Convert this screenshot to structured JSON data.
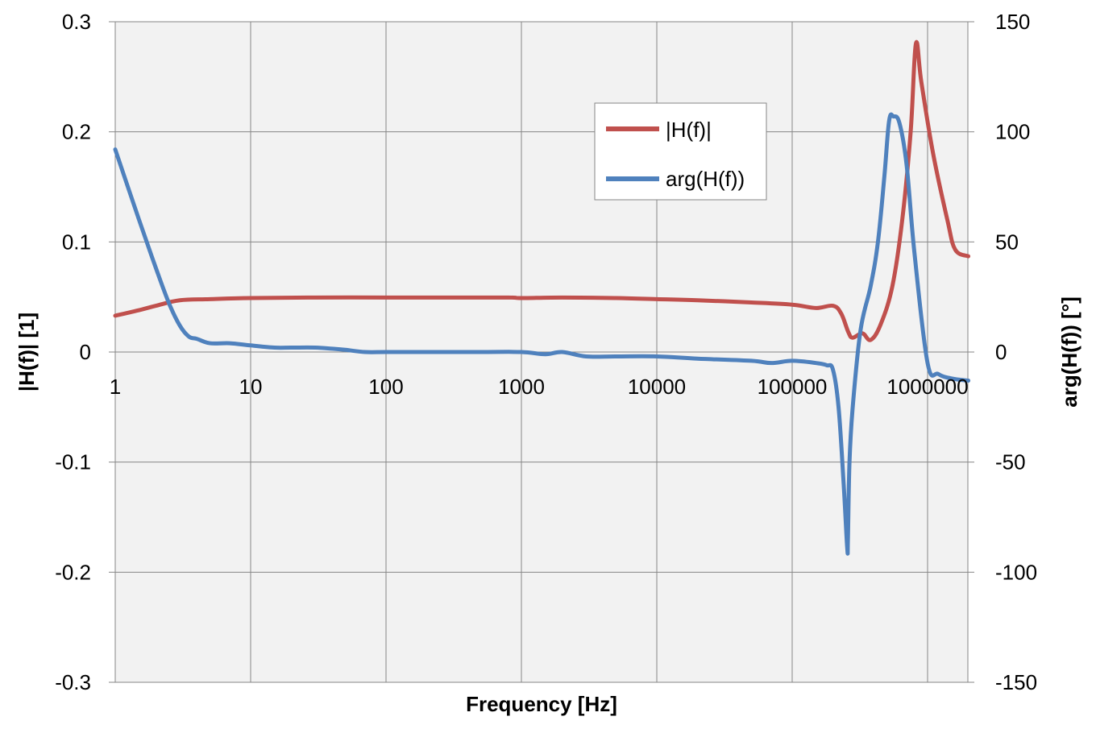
{
  "chart_data": {
    "type": "line",
    "xlabel": "Frequency [Hz]",
    "ylabel_left": "|H(f)| [1]",
    "ylabel_right": "arg(H(f)) [°]",
    "x_scale": "log",
    "x_ticks": [
      "1",
      "10",
      "100",
      "1000",
      "10000",
      "100000",
      "1000000"
    ],
    "x_range": [
      1,
      2000000
    ],
    "y_left_ticks": [
      "0.3",
      "0.2",
      "0.1",
      "0",
      "-0.1",
      "-0.2",
      "-0.3"
    ],
    "y_left_range": [
      -0.3,
      0.3
    ],
    "y_right_ticks": [
      "150",
      "100",
      "50",
      "0",
      "-50",
      "-100",
      "-150"
    ],
    "y_right_range": [
      -150,
      150
    ],
    "grid": true,
    "legend_position": "top-right-inside",
    "colors": {
      "magnitude": "#c0504d",
      "phase": "#4f81bd",
      "plot_bg": "#f2f2f2",
      "grid": "#868686"
    },
    "series": [
      {
        "name": "|H(f)|",
        "axis": "left",
        "x": [
          1,
          1.5,
          2,
          3,
          5,
          10,
          30,
          100,
          300,
          800,
          1000,
          2000,
          5000,
          10000,
          20000,
          50000,
          100000,
          150000,
          200000,
          230000,
          260000,
          280000,
          330000,
          380000,
          450000,
          550000,
          650000,
          750000,
          820000,
          900000,
          1100000,
          1400000,
          1600000,
          2000000
        ],
        "y": [
          0.033,
          0.038,
          0.042,
          0.047,
          0.048,
          0.049,
          0.0495,
          0.0495,
          0.0495,
          0.0495,
          0.049,
          0.0495,
          0.049,
          0.048,
          0.047,
          0.045,
          0.043,
          0.04,
          0.042,
          0.035,
          0.018,
          0.013,
          0.017,
          0.011,
          0.025,
          0.06,
          0.12,
          0.2,
          0.28,
          0.245,
          0.18,
          0.12,
          0.093,
          0.087
        ]
      },
      {
        "name": "arg(H(f))",
        "axis": "right",
        "x": [
          1,
          1.5,
          2,
          2.5,
          3,
          3.5,
          4,
          5,
          7,
          10,
          15,
          20,
          30,
          40,
          50,
          70,
          100,
          200,
          500,
          1000,
          1500,
          2000,
          3000,
          5000,
          10000,
          20000,
          50000,
          70000,
          100000,
          150000,
          180000,
          200000,
          220000,
          240000,
          255000,
          258000,
          265000,
          280000,
          320000,
          380000,
          430000,
          480000,
          520000,
          560000,
          620000,
          700000,
          800000,
          1000000,
          1200000,
          1500000,
          2000000
        ],
        "y": [
          92,
          60,
          38,
          22,
          12,
          7,
          6,
          4,
          4,
          3,
          2,
          2,
          2,
          1.5,
          1,
          0,
          0,
          0,
          0,
          0,
          -1,
          0,
          -2,
          -2,
          -2,
          -3,
          -4,
          -5,
          -4,
          -5,
          -6,
          -8,
          -25,
          -60,
          -89,
          -85,
          -50,
          -25,
          10,
          30,
          50,
          80,
          105,
          107,
          104,
          85,
          45,
          -5,
          -10,
          -12,
          -13
        ]
      }
    ]
  }
}
